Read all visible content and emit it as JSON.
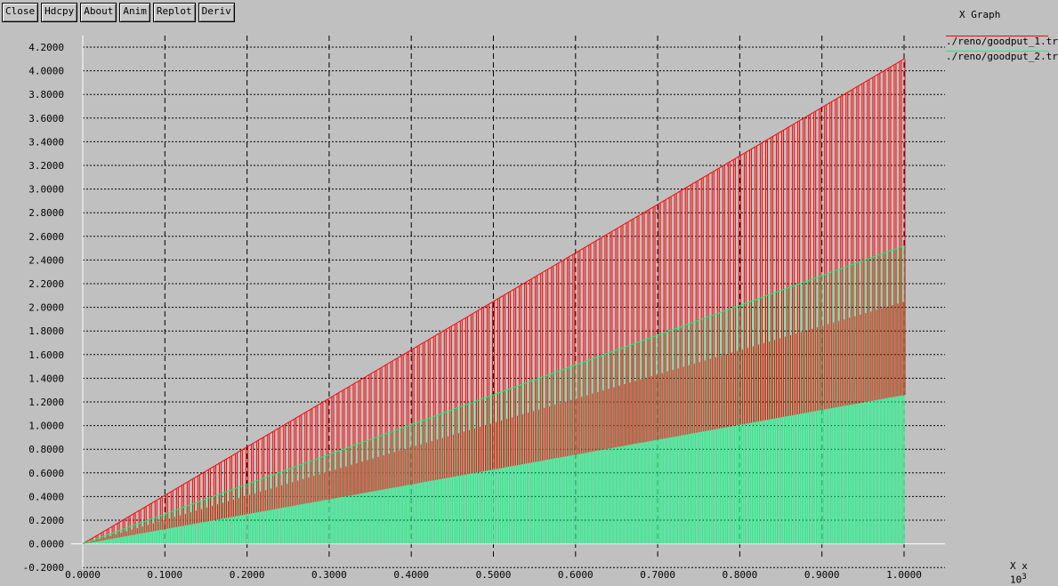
{
  "toolbar": {
    "buttons": [
      "Close",
      "Hdcpy",
      "About",
      "Anim",
      "Replot",
      "Deriv"
    ]
  },
  "window": {
    "title": "X Graph"
  },
  "axis": {
    "x_unit_label": "X x 10",
    "x_unit_exponent": "3"
  },
  "colors": {
    "background": "#c0c0c0",
    "axis": "#ffffff",
    "grid": "#000000",
    "series1": "#ff0000",
    "series2": "#00ff7f"
  },
  "chart_data": {
    "type": "line",
    "title": "",
    "xlabel": "",
    "ylabel": "",
    "xlim": [
      0,
      1.0
    ],
    "ylim": [
      -0.2,
      4.2
    ],
    "x_scale_note": "x values multiplied by 10^3",
    "xticks": [
      "0.0000",
      "0.1000",
      "0.2000",
      "0.3000",
      "0.4000",
      "0.5000",
      "0.6000",
      "0.7000",
      "0.8000",
      "0.9000",
      "1.0000"
    ],
    "yticks": [
      "-0.2000",
      "0.0000",
      "0.2000",
      "0.4000",
      "0.6000",
      "0.8000",
      "1.0000",
      "1.2000",
      "1.4000",
      "1.6000",
      "1.8000",
      "2.0000",
      "2.2000",
      "2.4000",
      "2.6000",
      "2.8000",
      "3.0000",
      "3.2000",
      "3.4000",
      "3.6000",
      "3.8000",
      "4.0000",
      "4.2000"
    ],
    "grid": true,
    "legend_position": "top-right",
    "series": [
      {
        "name": "./reno/goodput_1.tr",
        "color": "#ff0000",
        "x": [
          0.0,
          0.1,
          0.2,
          0.3,
          0.4,
          0.5,
          0.6,
          0.7,
          0.8,
          0.9,
          1.0
        ],
        "upper": [
          0.0,
          0.41,
          0.82,
          1.23,
          1.64,
          2.05,
          2.46,
          2.87,
          3.28,
          3.69,
          4.1
        ],
        "lower": [
          0.0,
          0.205,
          0.41,
          0.615,
          0.82,
          1.025,
          1.23,
          1.435,
          1.64,
          1.845,
          2.05
        ]
      },
      {
        "name": "./reno/goodput_2.tr",
        "color": "#00ff7f",
        "x": [
          0.0,
          0.1,
          0.2,
          0.3,
          0.4,
          0.5,
          0.6,
          0.7,
          0.8,
          0.9,
          1.0
        ],
        "upper": [
          0.0,
          0.252,
          0.504,
          0.756,
          1.008,
          1.26,
          1.512,
          1.764,
          2.016,
          2.268,
          2.52
        ],
        "lower": [
          0.0,
          0.126,
          0.252,
          0.378,
          0.504,
          0.63,
          0.756,
          0.882,
          1.008,
          1.134,
          1.26
        ]
      }
    ]
  }
}
